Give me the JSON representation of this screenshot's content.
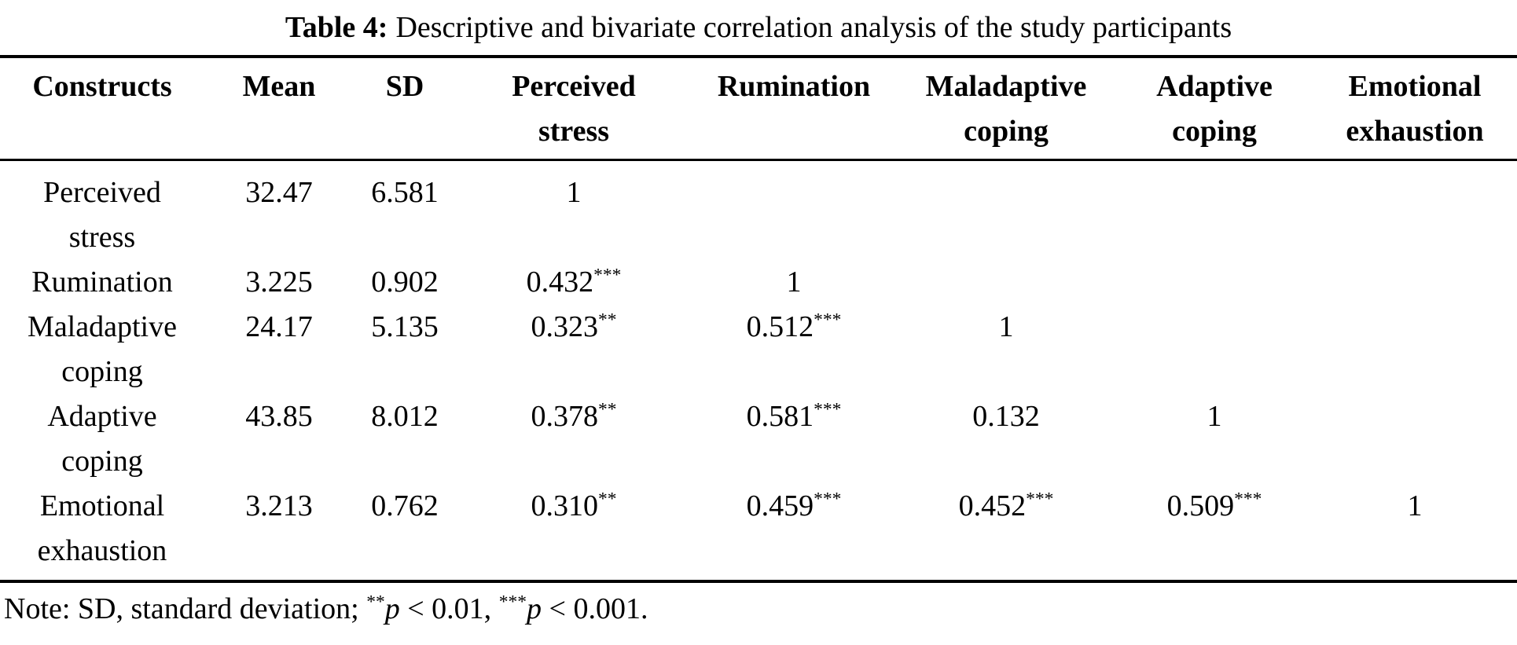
{
  "page": {
    "background_color": "#ffffff",
    "text_color": "#000000"
  },
  "title": {
    "prefix": "Table 4:",
    "rest": "Descriptive and bivariate correlation analysis of the study participants"
  },
  "table": {
    "headers": [
      {
        "id": "constructs",
        "lines": [
          "Constructs"
        ]
      },
      {
        "id": "mean",
        "lines": [
          "Mean"
        ]
      },
      {
        "id": "sd",
        "lines": [
          "SD"
        ]
      },
      {
        "id": "perceived-stress",
        "lines": [
          "Perceived",
          "stress"
        ]
      },
      {
        "id": "rumination",
        "lines": [
          "Rumination"
        ]
      },
      {
        "id": "maladaptive-coping",
        "lines": [
          "Maladaptive",
          "coping"
        ]
      },
      {
        "id": "adaptive-coping",
        "lines": [
          "Adaptive",
          "coping"
        ]
      },
      {
        "id": "emotional-exhaustion",
        "lines": [
          "Emotional",
          "exhaustion"
        ]
      }
    ],
    "rows": [
      {
        "construct_lines": [
          "Perceived",
          "stress"
        ],
        "mean": "32.47",
        "sd": "6.581",
        "cells": [
          "1",
          "",
          "",
          "",
          ""
        ]
      },
      {
        "construct_lines": [
          "Rumination"
        ],
        "mean": "3.225",
        "sd": "0.902",
        "cells": [
          "0.432***",
          "1",
          "",
          "",
          ""
        ]
      },
      {
        "construct_lines": [
          "Maladaptive",
          "coping"
        ],
        "mean": "24.17",
        "sd": "5.135",
        "cells": [
          "0.323**",
          "0.512***",
          "1",
          "",
          ""
        ]
      },
      {
        "construct_lines": [
          "Adaptive",
          "coping"
        ],
        "mean": "43.85",
        "sd": "8.012",
        "cells": [
          "0.378**",
          "0.581***",
          "0.132",
          "1",
          ""
        ]
      },
      {
        "construct_lines": [
          "Emotional",
          "exhaustion"
        ],
        "mean": "3.213",
        "sd": "0.762",
        "cells": [
          "0.310**",
          "0.459***",
          "0.452***",
          "0.509***",
          "1"
        ]
      }
    ]
  },
  "note": {
    "full_text": "Note: SD, standard deviation; **p < 0.01, ***p < 0.001.",
    "parts": [
      {
        "t": "text",
        "v": "Note: SD, standard deviation; "
      },
      {
        "t": "sup",
        "v": "**"
      },
      {
        "t": "italic",
        "v": "p"
      },
      {
        "t": "text",
        "v": " < 0.01, "
      },
      {
        "t": "sup",
        "v": "***"
      },
      {
        "t": "italic",
        "v": "p"
      },
      {
        "t": "text",
        "v": " < 0.001."
      }
    ]
  }
}
